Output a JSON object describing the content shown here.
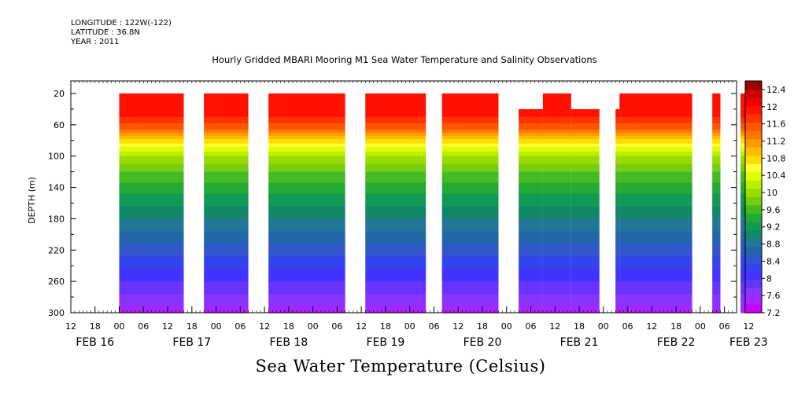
{
  "header": {
    "longitude": "LONGITUDE : 122W(-122)",
    "latitude": "LATITUDE : 36.8N",
    "year": "YEAR : 2011"
  },
  "chart_data": {
    "type": "heatmap",
    "title": "Hourly Gridded MBARI Mooring M1 Sea Water Temperature and Salinity Observations",
    "subtitle": "Sea Water Temperature (Celsius)",
    "ylabel": "DEPTH (m)",
    "xlabel": "",
    "x_range_hours": [
      -12,
      153
    ],
    "y_range": [
      300,
      4
    ],
    "y_inverted": true,
    "yticks": [
      20,
      60,
      100,
      140,
      180,
      220,
      260,
      300
    ],
    "x_hour_ticks": [
      "12",
      "18",
      "00",
      "06",
      "12",
      "18",
      "00",
      "06",
      "12",
      "18",
      "00",
      "06",
      "12",
      "18",
      "00",
      "06",
      "12",
      "18",
      "00",
      "06",
      "12",
      "18",
      "00",
      "06",
      "12",
      "18",
      "00",
      "06",
      "12"
    ],
    "x_hour_tick_hours": [
      -12,
      -6,
      0,
      6,
      12,
      18,
      24,
      30,
      36,
      42,
      48,
      54,
      60,
      66,
      72,
      78,
      84,
      90,
      96,
      102,
      108,
      114,
      120,
      126,
      132,
      138,
      144,
      150,
      156
    ],
    "date_labels": [
      "FEB 16",
      "FEB 17",
      "FEB 18",
      "FEB 19",
      "FEB 20",
      "FEB 21",
      "FEB 22",
      "FEB 23"
    ],
    "date_label_hours": [
      -6,
      18,
      42,
      66,
      90,
      114,
      138,
      156
    ],
    "data_segments": [
      {
        "start_hour": 0,
        "end_hour": 16,
        "top_depth": 20
      },
      {
        "start_hour": 21,
        "end_hour": 32,
        "top_depth": 20
      },
      {
        "start_hour": 37,
        "end_hour": 56,
        "top_depth": 20
      },
      {
        "start_hour": 61,
        "end_hour": 76,
        "top_depth": 20
      },
      {
        "start_hour": 80,
        "end_hour": 94,
        "top_depth": 20
      },
      {
        "start_hour": 99,
        "end_hour": 105,
        "top_depth": 40
      },
      {
        "start_hour": 105,
        "end_hour": 112,
        "top_depth": 20
      },
      {
        "start_hour": 112,
        "end_hour": 119,
        "top_depth": 40
      },
      {
        "start_hour": 123,
        "end_hour": 124,
        "top_depth": 40
      },
      {
        "start_hour": 124,
        "end_hour": 142,
        "top_depth": 20
      },
      {
        "start_hour": 147,
        "end_hour": 149,
        "top_depth": 20
      },
      {
        "start_hour": 154,
        "end_hour": 159,
        "top_depth": 20
      }
    ],
    "temperature_profile": [
      {
        "depth": 20,
        "temp": 12.2
      },
      {
        "depth": 50,
        "temp": 12.0
      },
      {
        "depth": 65,
        "temp": 11.6
      },
      {
        "depth": 78,
        "temp": 11.0
      },
      {
        "depth": 88,
        "temp": 10.6
      },
      {
        "depth": 100,
        "temp": 10.2
      },
      {
        "depth": 120,
        "temp": 9.8
      },
      {
        "depth": 140,
        "temp": 9.5
      },
      {
        "depth": 180,
        "temp": 9.0
      },
      {
        "depth": 220,
        "temp": 8.5
      },
      {
        "depth": 260,
        "temp": 8.0
      },
      {
        "depth": 285,
        "temp": 7.7
      },
      {
        "depth": 300,
        "temp": 7.5
      }
    ],
    "colorbar": {
      "labels": [
        "12.4",
        "12",
        "11.6",
        "11.2",
        "10.8",
        "10.4",
        "10",
        "9.6",
        "9.2",
        "8.8",
        "8.4",
        "8",
        "7.6",
        "7.2"
      ],
      "levels": [
        7.2,
        7.4,
        7.6,
        7.8,
        8.0,
        8.2,
        8.4,
        8.6,
        8.8,
        9.0,
        9.2,
        9.4,
        9.6,
        9.8,
        10.0,
        10.2,
        10.4,
        10.6,
        10.8,
        11.0,
        11.2,
        11.4,
        11.6,
        11.8,
        12.0,
        12.2,
        12.4,
        12.6
      ],
      "colors": [
        "#cc00ff",
        "#aa22ff",
        "#8833ff",
        "#6633ff",
        "#4433ff",
        "#3344ee",
        "#3355cc",
        "#2266aa",
        "#227799",
        "#118866",
        "#119955",
        "#22aa33",
        "#44bb22",
        "#77cc11",
        "#99dd00",
        "#bbee00",
        "#ddff00",
        "#ffff33",
        "#ffdd00",
        "#ffbb00",
        "#ff9900",
        "#ff7700",
        "#ff5500",
        "#ff3300",
        "#ff1100",
        "#ee0000",
        "#cc0000",
        "#990000"
      ]
    }
  }
}
